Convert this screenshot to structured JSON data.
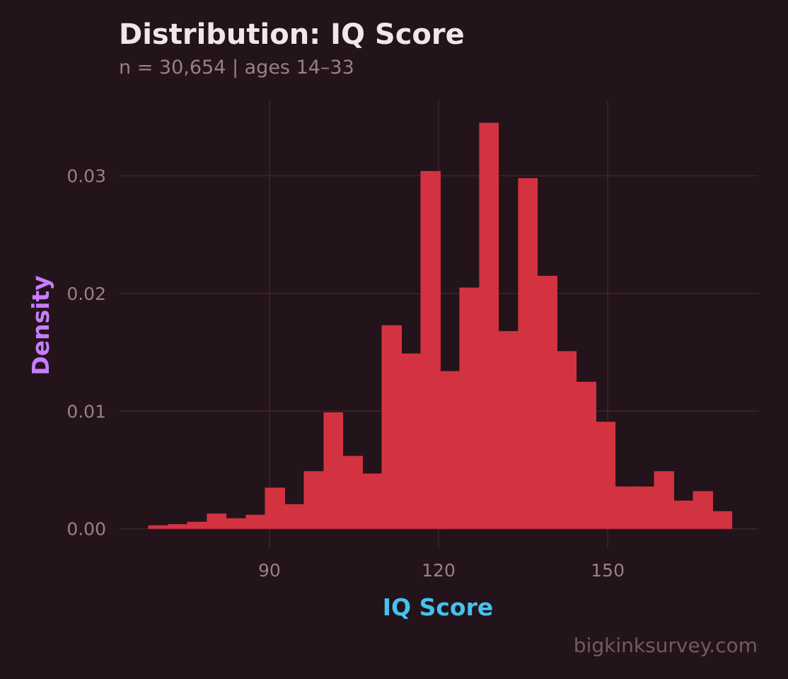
{
  "title": "Distribution: IQ Score",
  "subtitle": "n = 30,654  |  ages 14–33",
  "caption": "bigkinksurvey.com",
  "colors": {
    "background": "#23131a",
    "bar": "#d33341",
    "grid": "#3d2530",
    "tick_text": "#9a7f88",
    "xlabel": "#45c2ee",
    "ylabel": "#c77dff"
  },
  "chart_data": {
    "type": "bar",
    "xlabel": "IQ Score",
    "ylabel": "Density",
    "xlim": [
      63.3,
      176.7
    ],
    "ylim": [
      -0.0017,
      0.0364
    ],
    "xticks": [
      90,
      120,
      150
    ],
    "xtick_labels": [
      "90",
      "120",
      "150"
    ],
    "yticks": [
      0,
      0.01,
      0.02,
      0.03
    ],
    "ytick_labels": [
      "0.00",
      "0.01",
      "0.02",
      "0.03"
    ],
    "grid": true,
    "bin_width": 3.45,
    "bins": [
      {
        "x0": 68.5,
        "x1": 72.0,
        "value": 0.0003
      },
      {
        "x0": 72.0,
        "x1": 75.4,
        "value": 0.0004
      },
      {
        "x0": 75.4,
        "x1": 78.9,
        "value": 0.0006
      },
      {
        "x0": 78.9,
        "x1": 82.3,
        "value": 0.0013
      },
      {
        "x0": 82.3,
        "x1": 85.8,
        "value": 0.0009
      },
      {
        "x0": 85.8,
        "x1": 89.2,
        "value": 0.0012
      },
      {
        "x0": 89.2,
        "x1": 92.7,
        "value": 0.0035
      },
      {
        "x0": 92.7,
        "x1": 96.1,
        "value": 0.0021
      },
      {
        "x0": 96.1,
        "x1": 99.6,
        "value": 0.0049
      },
      {
        "x0": 99.6,
        "x1": 103.0,
        "value": 0.0099
      },
      {
        "x0": 103.0,
        "x1": 106.5,
        "value": 0.0062
      },
      {
        "x0": 106.5,
        "x1": 109.9,
        "value": 0.0047
      },
      {
        "x0": 109.9,
        "x1": 113.4,
        "value": 0.0173
      },
      {
        "x0": 113.4,
        "x1": 116.8,
        "value": 0.0149
      },
      {
        "x0": 116.8,
        "x1": 120.3,
        "value": 0.0304
      },
      {
        "x0": 120.3,
        "x1": 123.7,
        "value": 0.0134
      },
      {
        "x0": 123.7,
        "x1": 127.2,
        "value": 0.0205
      },
      {
        "x0": 127.2,
        "x1": 130.6,
        "value": 0.0345
      },
      {
        "x0": 130.6,
        "x1": 134.1,
        "value": 0.0168
      },
      {
        "x0": 134.1,
        "x1": 137.5,
        "value": 0.0298
      },
      {
        "x0": 137.5,
        "x1": 141.0,
        "value": 0.0215
      },
      {
        "x0": 141.0,
        "x1": 144.4,
        "value": 0.0151
      },
      {
        "x0": 144.4,
        "x1": 147.9,
        "value": 0.0125
      },
      {
        "x0": 147.9,
        "x1": 151.3,
        "value": 0.0091
      },
      {
        "x0": 151.3,
        "x1": 154.8,
        "value": 0.0036
      },
      {
        "x0": 154.8,
        "x1": 158.2,
        "value": 0.0036
      },
      {
        "x0": 158.2,
        "x1": 161.7,
        "value": 0.0049
      },
      {
        "x0": 161.7,
        "x1": 165.1,
        "value": 0.0024
      },
      {
        "x0": 165.1,
        "x1": 168.6,
        "value": 0.0032
      },
      {
        "x0": 168.6,
        "x1": 172.0,
        "value": 0.0015
      }
    ]
  }
}
